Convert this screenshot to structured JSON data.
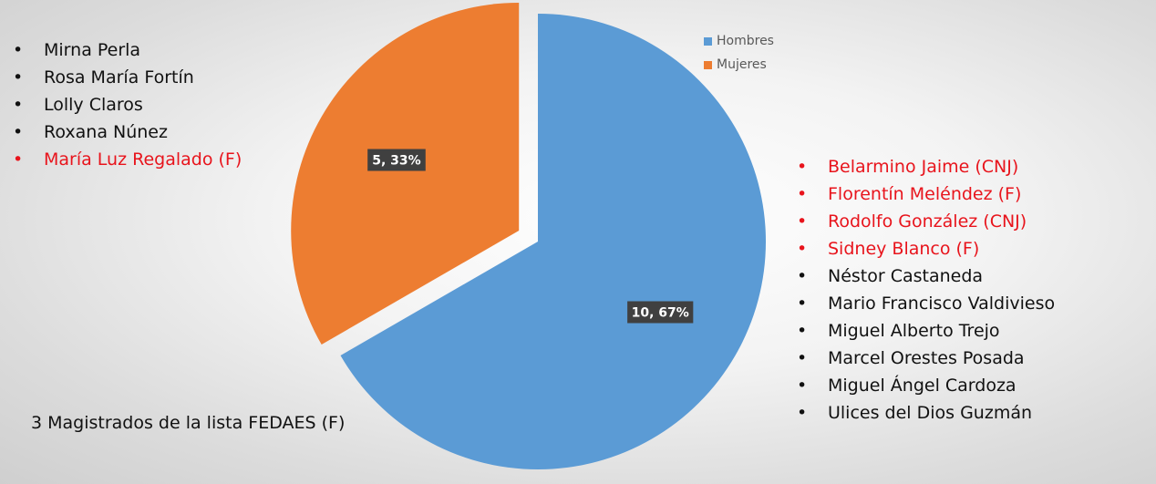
{
  "chart_data": {
    "type": "pie",
    "slices": [
      {
        "name": "Hombres",
        "value": 10,
        "percent": 67,
        "label": "10, 67%",
        "color": "#5b9bd5"
      },
      {
        "name": "Mujeres",
        "value": 5,
        "percent": 33,
        "label": "5, 33%",
        "color": "#ed7d31"
      }
    ],
    "exploded": "Mujeres",
    "legend_position": "top-right"
  },
  "legend": [
    {
      "label": "Hombres",
      "color": "#5b9bd5"
    },
    {
      "label": "Mujeres",
      "color": "#ed7d31"
    }
  ],
  "women_list": [
    {
      "name": "Mirna Perla",
      "highlight": false
    },
    {
      "name": "Rosa María Fortín",
      "highlight": false
    },
    {
      "name": "Lolly Claros",
      "highlight": false
    },
    {
      "name": "Roxana Núnez",
      "highlight": false
    },
    {
      "name": "María Luz Regalado (F)",
      "highlight": true
    }
  ],
  "men_list": [
    {
      "name": "Belarmino Jaime (CNJ)",
      "highlight": true
    },
    {
      "name": "Florentín Meléndez (F)",
      "highlight": true
    },
    {
      "name": "Rodolfo González (CNJ)",
      "highlight": true
    },
    {
      "name": "Sidney Blanco (F)",
      "highlight": true
    },
    {
      "name": "Néstor Castaneda",
      "highlight": false
    },
    {
      "name": "Mario Francisco Valdivieso",
      "highlight": false
    },
    {
      "name": "Miguel Alberto Trejo",
      "highlight": false
    },
    {
      "name": "Marcel Orestes Posada",
      "highlight": false
    },
    {
      "name": "Miguel Ángel Cardoza",
      "highlight": false
    },
    {
      "name": "Ulices del Dios Guzmán",
      "highlight": false
    }
  ],
  "footnote": "3 Magistrados de la lista FEDAES (F)",
  "colors": {
    "highlight_text": "#e8141c",
    "label_box": "#404040"
  }
}
